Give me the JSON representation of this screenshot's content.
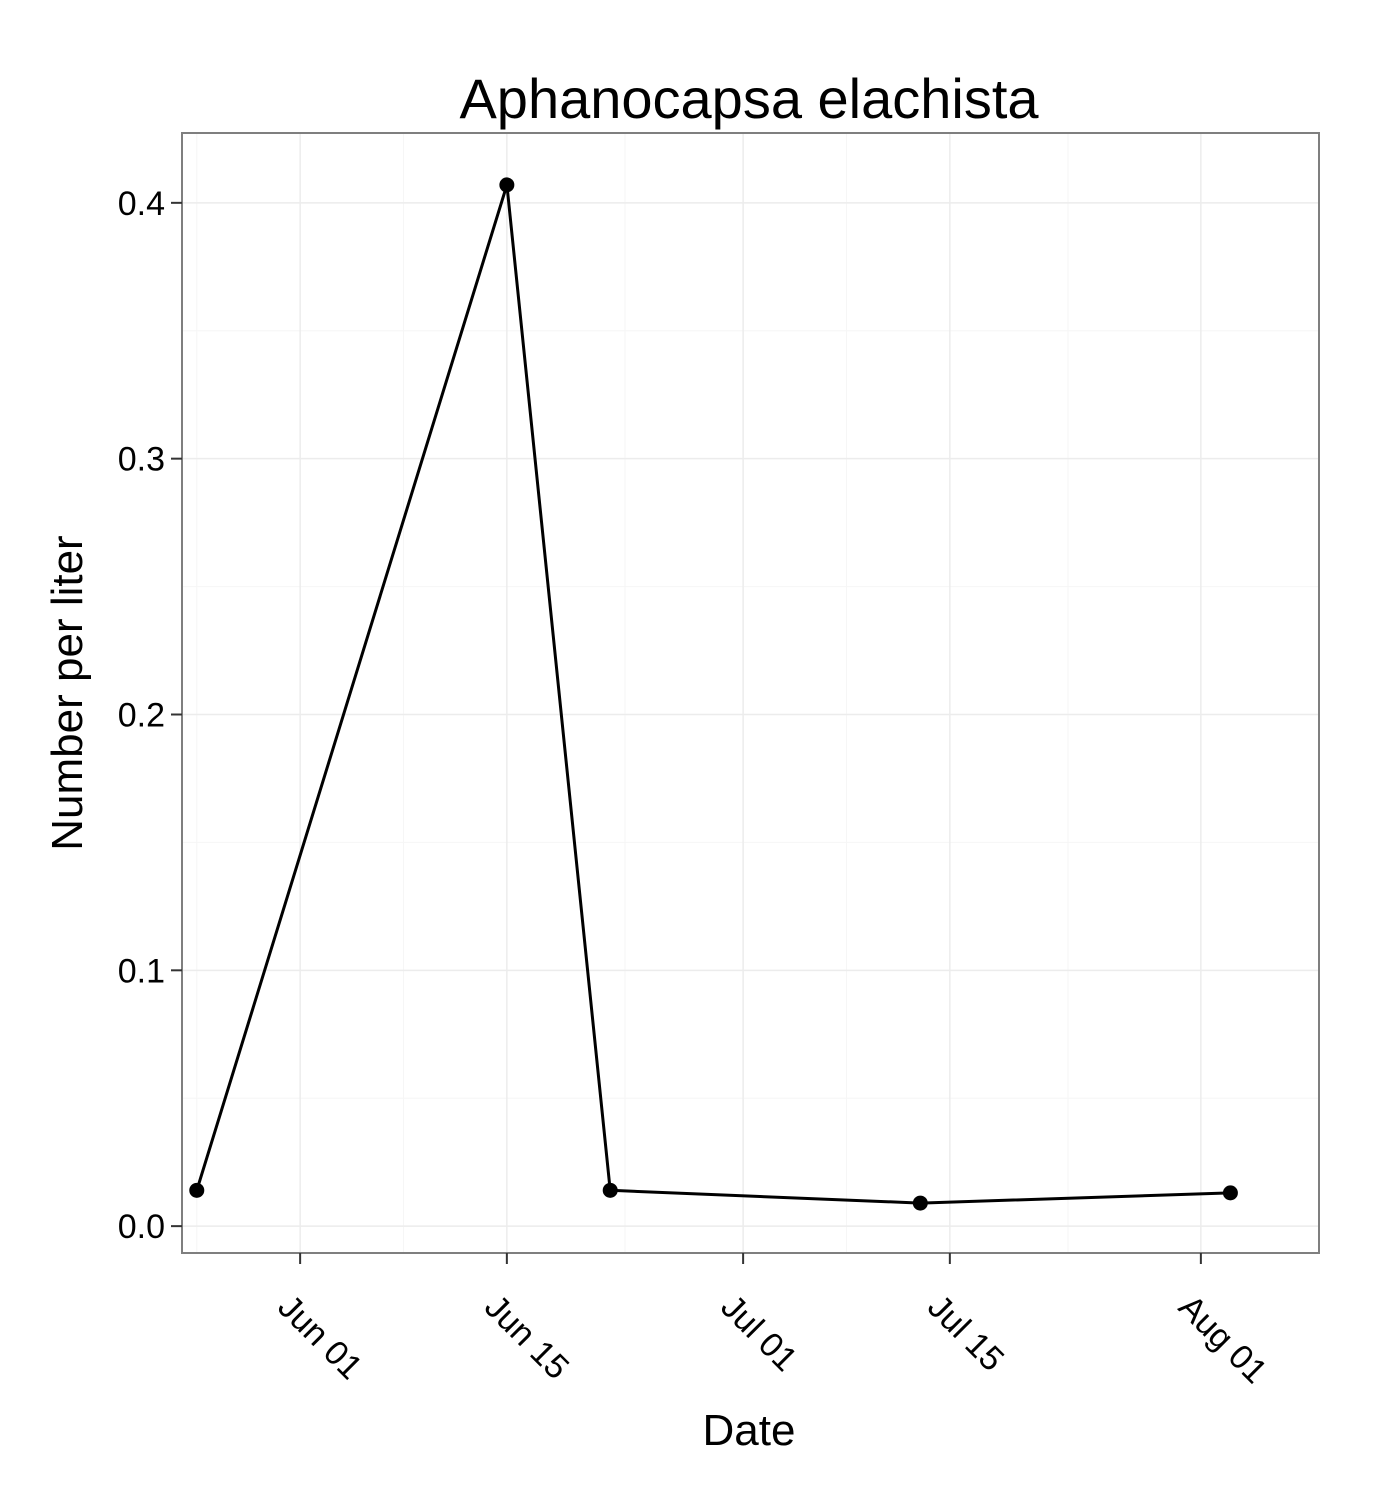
{
  "chart_data": {
    "type": "line",
    "title": "Aphanocapsa elachista",
    "xlabel": "Date",
    "ylabel": "Number per liter",
    "x_ticks": [
      {
        "date": "2012-06-01",
        "label": "Jun 01"
      },
      {
        "date": "2012-06-15",
        "label": "Jun 15"
      },
      {
        "date": "2012-07-01",
        "label": "Jul 01"
      },
      {
        "date": "2012-07-15",
        "label": "Jul 15"
      },
      {
        "date": "2012-08-01",
        "label": "Aug 01"
      }
    ],
    "y_ticks": [
      {
        "value": 0.0,
        "label": "0.0"
      },
      {
        "value": 0.1,
        "label": "0.1"
      },
      {
        "value": 0.2,
        "label": "0.2"
      },
      {
        "value": 0.3,
        "label": "0.3"
      },
      {
        "value": 0.4,
        "label": "0.4"
      }
    ],
    "xlim": [
      "2012-05-24",
      "2012-08-09"
    ],
    "ylim": [
      -0.0105,
      0.4273
    ],
    "grid": true,
    "points": [
      {
        "x": "2012-05-25",
        "y": 0.014
      },
      {
        "x": "2012-06-15",
        "y": 0.407
      },
      {
        "x": "2012-06-22",
        "y": 0.014
      },
      {
        "x": "2012-07-13",
        "y": 0.009
      },
      {
        "x": "2012-08-03",
        "y": 0.013
      }
    ],
    "colors": {
      "line": "#000000",
      "grid": "#ececec",
      "panel_border": "#7f7f7f"
    }
  }
}
